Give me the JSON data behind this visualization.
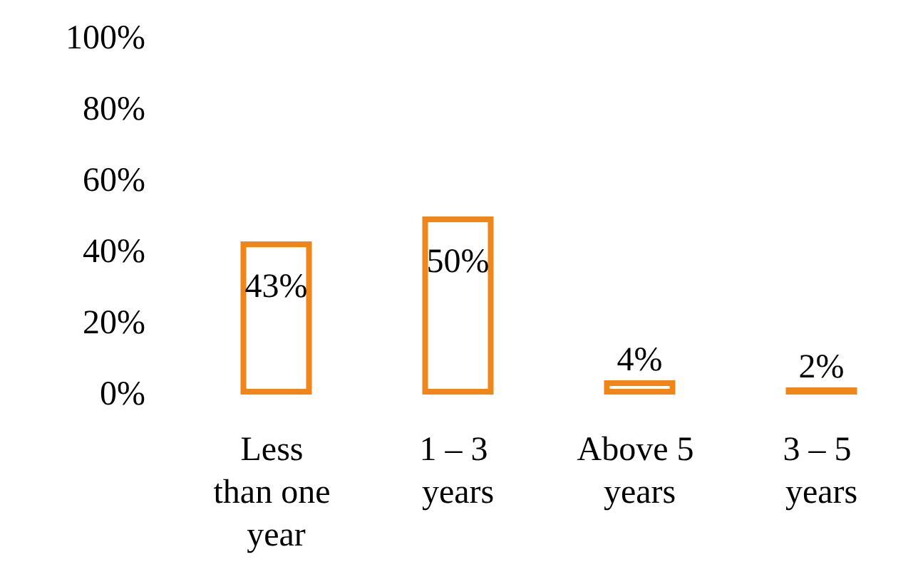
{
  "chart_data": {
    "type": "bar",
    "categories": [
      "Less than one year",
      "1 – 3 years",
      "Above 5 years",
      "3 – 5 years"
    ],
    "values": [
      43,
      50,
      4,
      2
    ],
    "value_labels": [
      "43%",
      "50%",
      "4%",
      "2%"
    ],
    "color": "#f0861a",
    "ylim": [
      0,
      100
    ],
    "yticks": [
      {
        "value": 0,
        "label": "0%"
      },
      {
        "value": 20,
        "label": "20%"
      },
      {
        "value": 40,
        "label": "40%"
      },
      {
        "value": 60,
        "label": "60%"
      },
      {
        "value": 80,
        "label": "80%"
      },
      {
        "value": 100,
        "label": "100%"
      }
    ],
    "grid": false
  }
}
